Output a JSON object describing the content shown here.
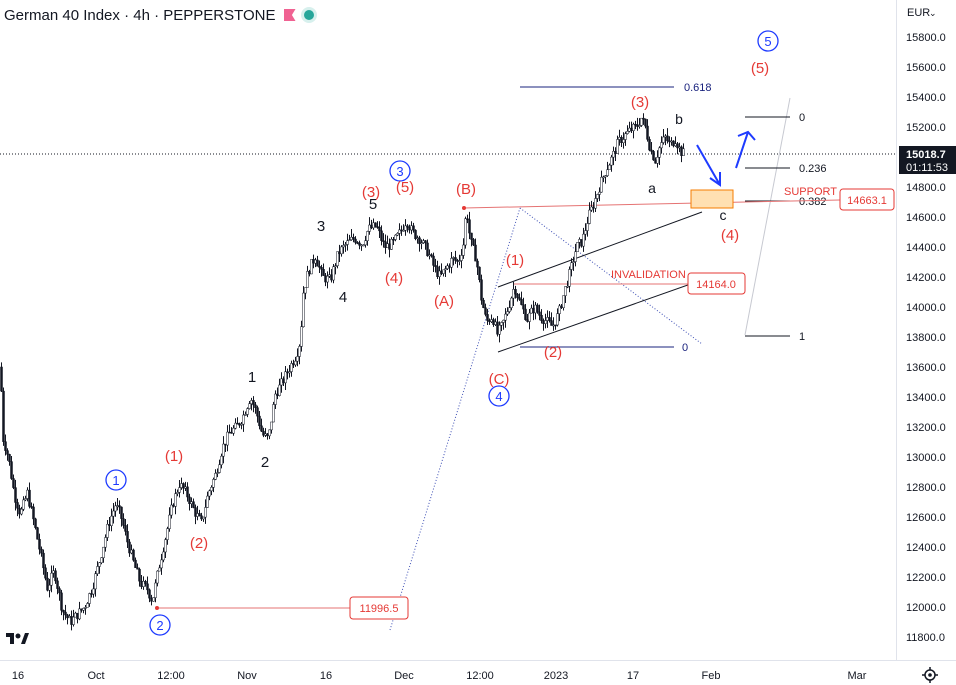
{
  "chart_data": {
    "type": "candlestick",
    "title": "German 40 Index · 4h · PEPPERSTONE",
    "currency": "EUR",
    "current_price": "15018.7",
    "countdown": "01:11:53",
    "ylim": [
      11720,
      15960
    ],
    "y_ticks": [
      "15800.0",
      "15600.0",
      "15400.0",
      "15200.0",
      "15000.0",
      "14800.0",
      "14600.0",
      "14400.0",
      "14200.0",
      "14000.0",
      "13800.0",
      "13600.0",
      "13400.0",
      "13200.0",
      "13000.0",
      "12800.0",
      "12600.0",
      "12400.0",
      "12200.0",
      "12000.0",
      "11800.0"
    ],
    "x_ticks": [
      "16",
      "Oct",
      "12:00",
      "Nov",
      "16",
      "Dec",
      "12:00",
      "2023",
      "17",
      "Feb",
      "Mar"
    ],
    "price_path": [
      {
        "t": 0,
        "p": 13600
      },
      {
        "t": 3,
        "p": 13120
      },
      {
        "t": 8,
        "p": 13000
      },
      {
        "t": 14,
        "p": 12750
      },
      {
        "t": 20,
        "p": 12620
      },
      {
        "t": 27,
        "p": 12760
      },
      {
        "t": 34,
        "p": 12550
      },
      {
        "t": 40,
        "p": 12360
      },
      {
        "t": 47,
        "p": 12130
      },
      {
        "t": 54,
        "p": 12240
      },
      {
        "t": 62,
        "p": 11980
      },
      {
        "t": 70,
        "p": 11900
      },
      {
        "t": 77,
        "p": 11950
      },
      {
        "t": 84,
        "p": 12000
      },
      {
        "t": 92,
        "p": 12130
      },
      {
        "t": 100,
        "p": 12330
      },
      {
        "t": 108,
        "p": 12550
      },
      {
        "t": 115,
        "p": 12680
      },
      {
        "t": 120,
        "p": 12620
      },
      {
        "t": 126,
        "p": 12460
      },
      {
        "t": 133,
        "p": 12300
      },
      {
        "t": 140,
        "p": 12160
      },
      {
        "t": 147,
        "p": 12120
      },
      {
        "t": 152,
        "p": 12040
      },
      {
        "t": 159,
        "p": 12280
      },
      {
        "t": 165,
        "p": 12460
      },
      {
        "t": 172,
        "p": 12680
      },
      {
        "t": 179,
        "p": 12820
      },
      {
        "t": 186,
        "p": 12760
      },
      {
        "t": 194,
        "p": 12640
      },
      {
        "t": 201,
        "p": 12560
      },
      {
        "t": 208,
        "p": 12760
      },
      {
        "t": 215,
        "p": 12880
      },
      {
        "t": 222,
        "p": 13060
      },
      {
        "t": 229,
        "p": 13160
      },
      {
        "t": 236,
        "p": 13200
      },
      {
        "t": 242,
        "p": 13260
      },
      {
        "t": 250,
        "p": 13400
      },
      {
        "t": 256,
        "p": 13300
      },
      {
        "t": 262,
        "p": 13150
      },
      {
        "t": 268,
        "p": 13120
      },
      {
        "t": 275,
        "p": 13420
      },
      {
        "t": 282,
        "p": 13500
      },
      {
        "t": 288,
        "p": 13580
      },
      {
        "t": 296,
        "p": 13680
      },
      {
        "t": 300,
        "p": 13780
      },
      {
        "t": 303,
        "p": 14100
      },
      {
        "t": 308,
        "p": 14240
      },
      {
        "t": 315,
        "p": 14340
      },
      {
        "t": 322,
        "p": 14200
      },
      {
        "t": 330,
        "p": 14180
      },
      {
        "t": 338,
        "p": 14360
      },
      {
        "t": 346,
        "p": 14420
      },
      {
        "t": 354,
        "p": 14460
      },
      {
        "t": 362,
        "p": 14420
      },
      {
        "t": 368,
        "p": 14520
      },
      {
        "t": 376,
        "p": 14540
      },
      {
        "t": 384,
        "p": 14400
      },
      {
        "t": 392,
        "p": 14420
      },
      {
        "t": 400,
        "p": 14500
      },
      {
        "t": 406,
        "p": 14580
      },
      {
        "t": 412,
        "p": 14500
      },
      {
        "t": 420,
        "p": 14450
      },
      {
        "t": 428,
        "p": 14360
      },
      {
        "t": 434,
        "p": 14260
      },
      {
        "t": 440,
        "p": 14200
      },
      {
        "t": 446,
        "p": 14260
      },
      {
        "t": 452,
        "p": 14320
      },
      {
        "t": 458,
        "p": 14300
      },
      {
        "t": 463,
        "p": 14420
      },
      {
        "t": 466,
        "p": 14660
      },
      {
        "t": 470,
        "p": 14440
      },
      {
        "t": 476,
        "p": 14320
      },
      {
        "t": 481,
        "p": 14060
      },
      {
        "t": 486,
        "p": 13900
      },
      {
        "t": 492,
        "p": 13940
      },
      {
        "t": 497,
        "p": 13820
      },
      {
        "t": 502,
        "p": 13880
      },
      {
        "t": 508,
        "p": 14000
      },
      {
        "t": 514,
        "p": 14140
      },
      {
        "t": 520,
        "p": 14020
      },
      {
        "t": 527,
        "p": 13920
      },
      {
        "t": 534,
        "p": 14000
      },
      {
        "t": 540,
        "p": 13940
      },
      {
        "t": 547,
        "p": 13900
      },
      {
        "t": 552,
        "p": 13870
      },
      {
        "t": 558,
        "p": 13950
      },
      {
        "t": 564,
        "p": 14100
      },
      {
        "t": 570,
        "p": 14240
      },
      {
        "t": 576,
        "p": 14400
      },
      {
        "t": 582,
        "p": 14440
      },
      {
        "t": 588,
        "p": 14600
      },
      {
        "t": 594,
        "p": 14700
      },
      {
        "t": 600,
        "p": 14820
      },
      {
        "t": 606,
        "p": 14920
      },
      {
        "t": 612,
        "p": 15000
      },
      {
        "t": 618,
        "p": 15100
      },
      {
        "t": 624,
        "p": 15140
      },
      {
        "t": 630,
        "p": 15180
      },
      {
        "t": 636,
        "p": 15200
      },
      {
        "t": 641,
        "p": 15260
      },
      {
        "t": 645,
        "p": 15200
      },
      {
        "t": 650,
        "p": 15050
      },
      {
        "t": 655,
        "p": 14980
      },
      {
        "t": 660,
        "p": 15080
      },
      {
        "t": 665,
        "p": 15130
      },
      {
        "t": 670,
        "p": 15080
      },
      {
        "t": 675,
        "p": 15120
      },
      {
        "t": 680,
        "p": 15040
      },
      {
        "t": 684,
        "p": 15019
      }
    ],
    "fib_upper": {
      "levels": [
        {
          "ratio": 0,
          "label": "0"
        },
        {
          "ratio": 0.236,
          "label": "0.236"
        },
        {
          "ratio": 0.382,
          "label": "0.382"
        },
        {
          "ratio": 1,
          "label": "1"
        }
      ]
    },
    "fib_blue": {
      "labels": [
        "0.618",
        "0"
      ]
    },
    "support": {
      "label": "SUPPORT",
      "price": "14663.1"
    },
    "invalidation": {
      "label": "INVALIDATION",
      "price": "14164.0"
    },
    "low_marker": {
      "price": "11996.5"
    },
    "wave_labels": {
      "blue_circles": [
        "1",
        "2",
        "3",
        "4",
        "5"
      ],
      "red": [
        "(1)",
        "(2)",
        "(3)",
        "(5)",
        "(4)",
        "(A)",
        "(B)",
        "(C)",
        "(1)",
        "(2)",
        "(3)",
        "(4)",
        "(5)"
      ],
      "black": [
        "1",
        "2",
        "3",
        "4",
        "5",
        "a",
        "b",
        "c"
      ]
    }
  }
}
